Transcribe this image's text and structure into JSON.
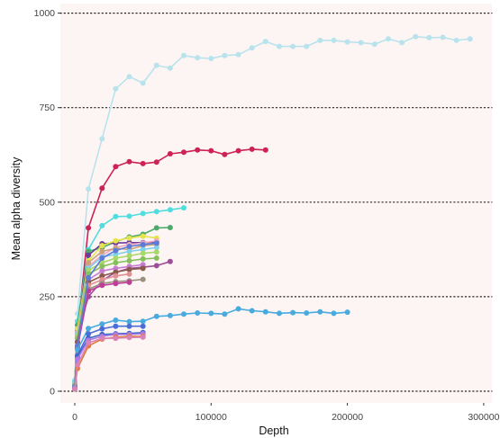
{
  "chart_data": {
    "type": "line",
    "title": "",
    "xlabel": "Depth",
    "ylabel": "Mean alpha diversity",
    "xlim": [
      -5000,
      300000
    ],
    "ylim": [
      -30,
      1010
    ],
    "x_ticks": [
      0,
      100000,
      200000,
      300000
    ],
    "x_tick_labels": [
      "0",
      "100000",
      "200000",
      "300000"
    ],
    "y_ticks": [
      0,
      250,
      500,
      750,
      1000
    ],
    "y_tick_labels": [
      "0",
      "250",
      "500",
      "750",
      "1000"
    ],
    "grid": "horizontal dotted",
    "legend": "none",
    "panel_background": "#fdf5f4",
    "series": [
      {
        "color": "#b9e3ec",
        "values": [
          [
            0,
            30
          ],
          [
            2000,
            205
          ],
          [
            10000,
            535
          ],
          [
            20000,
            668
          ],
          [
            30000,
            800
          ],
          [
            40000,
            832
          ],
          [
            50000,
            815
          ],
          [
            60000,
            862
          ],
          [
            70000,
            855
          ],
          [
            80000,
            888
          ],
          [
            90000,
            882
          ],
          [
            100000,
            880
          ],
          [
            110000,
            888
          ],
          [
            120000,
            890
          ],
          [
            130000,
            908
          ],
          [
            140000,
            925
          ],
          [
            150000,
            912
          ],
          [
            160000,
            912
          ],
          [
            170000,
            912
          ],
          [
            180000,
            928
          ],
          [
            190000,
            928
          ],
          [
            200000,
            924
          ],
          [
            210000,
            922
          ],
          [
            220000,
            918
          ],
          [
            230000,
            932
          ],
          [
            240000,
            922
          ],
          [
            250000,
            938
          ],
          [
            260000,
            935
          ],
          [
            270000,
            936
          ],
          [
            280000,
            928
          ],
          [
            290000,
            932
          ]
        ]
      },
      {
        "color": "#cc2255",
        "values": [
          [
            0,
            20
          ],
          [
            2000,
            160
          ],
          [
            10000,
            432
          ],
          [
            20000,
            537
          ],
          [
            30000,
            594
          ],
          [
            40000,
            607
          ],
          [
            50000,
            602
          ],
          [
            60000,
            606
          ],
          [
            70000,
            628
          ],
          [
            80000,
            632
          ],
          [
            90000,
            638
          ],
          [
            100000,
            636
          ],
          [
            110000,
            626
          ],
          [
            120000,
            636
          ],
          [
            130000,
            640
          ],
          [
            140000,
            638
          ]
        ]
      },
      {
        "color": "#4fdde0",
        "values": [
          [
            0,
            25
          ],
          [
            2000,
            185
          ],
          [
            10000,
            375
          ],
          [
            20000,
            438
          ],
          [
            30000,
            462
          ],
          [
            40000,
            463
          ],
          [
            50000,
            470
          ],
          [
            60000,
            475
          ],
          [
            70000,
            480
          ],
          [
            80000,
            485
          ]
        ]
      },
      {
        "color": "#4daa6a",
        "values": [
          [
            0,
            20
          ],
          [
            2000,
            175
          ],
          [
            10000,
            370
          ],
          [
            20000,
            380
          ],
          [
            30000,
            395
          ],
          [
            40000,
            408
          ],
          [
            50000,
            415
          ],
          [
            60000,
            432
          ],
          [
            70000,
            433
          ]
        ]
      },
      {
        "color": "#9d4e98",
        "values": [
          [
            0,
            15
          ],
          [
            2000,
            150
          ],
          [
            10000,
            250
          ],
          [
            20000,
            292
          ],
          [
            30000,
            315
          ],
          [
            40000,
            325
          ],
          [
            50000,
            328
          ],
          [
            60000,
            332
          ],
          [
            70000,
            343
          ]
        ]
      },
      {
        "color": "#6b3c9a",
        "values": [
          [
            0,
            18
          ],
          [
            2000,
            165
          ],
          [
            10000,
            360
          ],
          [
            20000,
            390
          ],
          [
            30000,
            392
          ],
          [
            40000,
            393
          ],
          [
            50000,
            393
          ],
          [
            60000,
            395
          ]
        ]
      },
      {
        "color": "#e6e44c",
        "values": [
          [
            0,
            20
          ],
          [
            2000,
            165
          ],
          [
            10000,
            345
          ],
          [
            20000,
            385
          ],
          [
            30000,
            398
          ],
          [
            40000,
            405
          ],
          [
            50000,
            410
          ],
          [
            60000,
            405
          ]
        ]
      },
      {
        "color": "#f0a7c0",
        "values": [
          [
            0,
            20
          ],
          [
            2000,
            155
          ],
          [
            10000,
            330
          ],
          [
            20000,
            360
          ],
          [
            30000,
            380
          ],
          [
            40000,
            388
          ],
          [
            50000,
            392
          ],
          [
            60000,
            398
          ]
        ]
      },
      {
        "color": "#c9a27a",
        "values": [
          [
            0,
            18
          ],
          [
            2000,
            150
          ],
          [
            10000,
            340
          ],
          [
            20000,
            370
          ],
          [
            30000,
            378
          ],
          [
            40000,
            375
          ],
          [
            50000,
            385
          ],
          [
            60000,
            388
          ]
        ]
      },
      {
        "color": "#7fd0e8",
        "values": [
          [
            0,
            18
          ],
          [
            2000,
            150
          ],
          [
            10000,
            325
          ],
          [
            20000,
            355
          ],
          [
            30000,
            362
          ],
          [
            40000,
            370
          ],
          [
            50000,
            375
          ],
          [
            60000,
            380
          ]
        ]
      },
      {
        "color": "#a8d86a",
        "values": [
          [
            0,
            15
          ],
          [
            2000,
            145
          ],
          [
            10000,
            320
          ],
          [
            20000,
            340
          ],
          [
            30000,
            352
          ],
          [
            40000,
            358
          ],
          [
            50000,
            365
          ],
          [
            60000,
            368
          ]
        ]
      },
      {
        "color": "#86c05a",
        "values": [
          [
            0,
            15
          ],
          [
            2000,
            140
          ],
          [
            10000,
            310
          ],
          [
            20000,
            330
          ],
          [
            30000,
            340
          ],
          [
            40000,
            345
          ],
          [
            50000,
            350
          ],
          [
            60000,
            352
          ]
        ]
      },
      {
        "color": "#c67dd0",
        "values": [
          [
            0,
            12
          ],
          [
            2000,
            130
          ],
          [
            10000,
            295
          ],
          [
            20000,
            318
          ],
          [
            30000,
            325
          ],
          [
            40000,
            330
          ],
          [
            50000,
            335
          ]
        ]
      },
      {
        "color": "#8a5a4a",
        "values": [
          [
            0,
            12
          ],
          [
            2000,
            130
          ],
          [
            10000,
            288
          ],
          [
            20000,
            305
          ],
          [
            30000,
            315
          ],
          [
            40000,
            322
          ],
          [
            50000,
            325
          ]
        ]
      },
      {
        "color": "#e09090",
        "values": [
          [
            0,
            10
          ],
          [
            2000,
            120
          ],
          [
            10000,
            280
          ],
          [
            20000,
            295
          ],
          [
            30000,
            305
          ],
          [
            40000,
            310
          ]
        ]
      },
      {
        "color": "#9b8f7e",
        "values": [
          [
            0,
            10
          ],
          [
            2000,
            120
          ],
          [
            10000,
            270
          ],
          [
            20000,
            285
          ],
          [
            30000,
            290
          ],
          [
            40000,
            292
          ],
          [
            50000,
            296
          ]
        ]
      },
      {
        "color": "#bf3c9a",
        "values": [
          [
            0,
            10
          ],
          [
            2000,
            115
          ],
          [
            10000,
            265
          ],
          [
            20000,
            280
          ],
          [
            30000,
            285
          ],
          [
            40000,
            288
          ]
        ]
      },
      {
        "color": "#5b7bd8",
        "values": [
          [
            0,
            12
          ],
          [
            2000,
            120
          ],
          [
            10000,
            300
          ],
          [
            20000,
            352
          ],
          [
            30000,
            372
          ],
          [
            40000,
            383
          ],
          [
            50000,
            388
          ],
          [
            60000,
            392
          ]
        ]
      },
      {
        "color": "#48aadd",
        "values": [
          [
            0,
            10
          ],
          [
            2000,
            110
          ],
          [
            10000,
            166
          ],
          [
            20000,
            178
          ],
          [
            30000,
            188
          ],
          [
            40000,
            184
          ],
          [
            50000,
            185
          ],
          [
            60000,
            198
          ],
          [
            70000,
            200
          ],
          [
            80000,
            204
          ],
          [
            90000,
            207
          ],
          [
            100000,
            206
          ],
          [
            110000,
            204
          ],
          [
            120000,
            218
          ],
          [
            130000,
            213
          ],
          [
            140000,
            210
          ],
          [
            150000,
            206
          ],
          [
            160000,
            208
          ],
          [
            170000,
            207
          ],
          [
            180000,
            210
          ],
          [
            190000,
            206
          ],
          [
            200000,
            209
          ]
        ]
      },
      {
        "color": "#4a6ed8",
        "values": [
          [
            0,
            8
          ],
          [
            2000,
            95
          ],
          [
            10000,
            152
          ],
          [
            20000,
            165
          ],
          [
            30000,
            172
          ],
          [
            40000,
            172
          ],
          [
            50000,
            172
          ]
        ]
      },
      {
        "color": "#3a64c8",
        "values": [
          [
            0,
            8
          ],
          [
            2000,
            90
          ],
          [
            10000,
            140
          ],
          [
            20000,
            150
          ],
          [
            30000,
            152
          ],
          [
            40000,
            153
          ],
          [
            50000,
            155
          ]
        ]
      },
      {
        "color": "#b07ae0",
        "values": [
          [
            0,
            8
          ],
          [
            2000,
            85
          ],
          [
            10000,
            135
          ],
          [
            20000,
            145
          ],
          [
            30000,
            150
          ],
          [
            40000,
            150
          ],
          [
            50000,
            152
          ]
        ]
      },
      {
        "color": "#e07a3a",
        "values": [
          [
            0,
            6
          ],
          [
            2000,
            60
          ],
          [
            10000,
            120
          ],
          [
            20000,
            138
          ],
          [
            30000,
            143
          ],
          [
            40000,
            145
          ],
          [
            50000,
            145
          ]
        ]
      },
      {
        "color": "#d882b8",
        "values": [
          [
            0,
            6
          ],
          [
            2000,
            70
          ],
          [
            10000,
            128
          ],
          [
            20000,
            140
          ],
          [
            30000,
            140
          ],
          [
            40000,
            142
          ],
          [
            50000,
            143
          ]
        ]
      }
    ]
  }
}
